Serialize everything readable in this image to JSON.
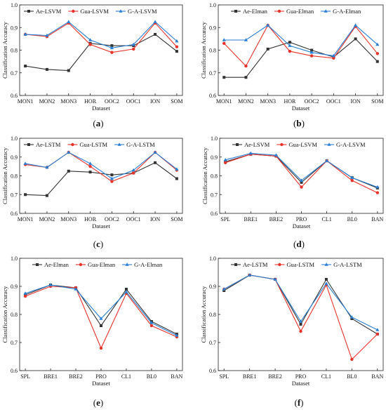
{
  "chart_data": [
    {
      "type": "line",
      "caption": "(a)",
      "xlabel": "Dataset",
      "ylabel": "Classification Accuracy",
      "ylim": [
        0.6,
        1.0
      ],
      "yticks": [
        "0.6",
        "0.7",
        "0.8",
        "0.9",
        "1.0"
      ],
      "legend_position": "top-left",
      "categories": [
        "MON1",
        "MON2",
        "MON3",
        "HOR",
        "OOC2",
        "OOC1",
        "ION",
        "SOM"
      ],
      "series": [
        {
          "name": "Ae-LSVM",
          "color": "#333333",
          "marker": "square",
          "values": [
            0.73,
            0.715,
            0.71,
            0.83,
            0.82,
            0.82,
            0.87,
            0.795
          ]
        },
        {
          "name": "Gua-LSVM",
          "color": "#e8332a",
          "marker": "circle",
          "values": [
            0.87,
            0.86,
            0.92,
            0.825,
            0.79,
            0.805,
            0.92,
            0.815
          ]
        },
        {
          "name": "G-A-LSVM",
          "color": "#2a7fd4",
          "marker": "triangle",
          "values": [
            0.87,
            0.865,
            0.925,
            0.845,
            0.81,
            0.825,
            0.925,
            0.84
          ]
        }
      ]
    },
    {
      "type": "line",
      "caption": "(b)",
      "xlabel": "Dataset",
      "ylabel": "Classification Accuracy",
      "ylim": [
        0.6,
        1.0
      ],
      "yticks": [
        "0.6",
        "0.7",
        "0.8",
        "0.9",
        "1.0"
      ],
      "legend_position": "top",
      "categories": [
        "MON1",
        "MON2",
        "MON3",
        "HOR",
        "OOC2",
        "OOC1",
        "ION",
        "SOM"
      ],
      "series": [
        {
          "name": "Ae-Elman",
          "color": "#333333",
          "marker": "square",
          "values": [
            0.68,
            0.68,
            0.805,
            0.835,
            0.8,
            0.77,
            0.85,
            0.75
          ]
        },
        {
          "name": "Gua-Elman",
          "color": "#e8332a",
          "marker": "circle",
          "values": [
            0.83,
            0.73,
            0.91,
            0.795,
            0.775,
            0.765,
            0.905,
            0.785
          ]
        },
        {
          "name": "G-A-Elman",
          "color": "#2a7fd4",
          "marker": "triangle",
          "values": [
            0.845,
            0.845,
            0.91,
            0.82,
            0.79,
            0.775,
            0.91,
            0.825
          ]
        }
      ]
    },
    {
      "type": "line",
      "caption": "(c)",
      "xlabel": "Dataset",
      "ylabel": "Classification Accuracy",
      "ylim": [
        0.6,
        1.0
      ],
      "yticks": [
        "0.6",
        "0.7",
        "0.8",
        "0.9",
        "1.0"
      ],
      "legend_position": "top-left",
      "categories": [
        "MON1",
        "MON2",
        "MON3",
        "HOR",
        "OOC2",
        "OOC1",
        "ION",
        "SOM"
      ],
      "series": [
        {
          "name": "Ae-LSTM",
          "color": "#333333",
          "marker": "square",
          "values": [
            0.7,
            0.695,
            0.825,
            0.82,
            0.805,
            0.815,
            0.87,
            0.785
          ]
        },
        {
          "name": "Gua-LSTM",
          "color": "#e8332a",
          "marker": "circle",
          "values": [
            0.86,
            0.845,
            0.925,
            0.85,
            0.77,
            0.815,
            0.925,
            0.83
          ]
        },
        {
          "name": "G-A-LSTM",
          "color": "#2a7fd4",
          "marker": "triangle",
          "values": [
            0.865,
            0.845,
            0.925,
            0.865,
            0.785,
            0.83,
            0.925,
            0.835
          ]
        }
      ]
    },
    {
      "type": "line",
      "caption": "(d)",
      "xlabel": "Dataset",
      "ylabel": "Classification Accuracy",
      "ylim": [
        0.6,
        1.0
      ],
      "yticks": [
        "0.6",
        "0.7",
        "0.8",
        "0.9",
        "1.0"
      ],
      "legend_position": "top",
      "categories": [
        "SPL",
        "BRE1",
        "BRE2",
        "PRO",
        "CL1",
        "BL0",
        "BAN"
      ],
      "series": [
        {
          "name": "Ae-LSVM",
          "color": "#333333",
          "marker": "square",
          "values": [
            0.875,
            0.915,
            0.905,
            0.765,
            0.88,
            0.79,
            0.735
          ]
        },
        {
          "name": "Gua-LSVM",
          "color": "#e8332a",
          "marker": "circle",
          "values": [
            0.87,
            0.915,
            0.905,
            0.74,
            0.88,
            0.775,
            0.71
          ]
        },
        {
          "name": "G-A-LSVM",
          "color": "#2a7fd4",
          "marker": "triangle",
          "values": [
            0.885,
            0.92,
            0.91,
            0.775,
            0.88,
            0.79,
            0.74
          ]
        }
      ]
    },
    {
      "type": "line",
      "caption": "(e)",
      "xlabel": "Dataset",
      "ylabel": "Classification Accuracy",
      "ylim": [
        0.6,
        1.0
      ],
      "yticks": [
        "0.6",
        "0.7",
        "0.8",
        "0.9",
        "1.0"
      ],
      "legend_position": "top",
      "categories": [
        "SPL",
        "BRE1",
        "BRE2",
        "PRO",
        "CL1",
        "BL0",
        "BAN"
      ],
      "series": [
        {
          "name": "Ae-Elman",
          "color": "#333333",
          "marker": "square",
          "values": [
            0.87,
            0.905,
            0.895,
            0.76,
            0.89,
            0.775,
            0.73
          ]
        },
        {
          "name": "Gua-Elman",
          "color": "#e8332a",
          "marker": "circle",
          "values": [
            0.865,
            0.9,
            0.895,
            0.68,
            0.875,
            0.76,
            0.72
          ]
        },
        {
          "name": "G-A-Elman",
          "color": "#2a7fd4",
          "marker": "triangle",
          "values": [
            0.875,
            0.905,
            0.89,
            0.785,
            0.88,
            0.77,
            0.725
          ]
        }
      ]
    },
    {
      "type": "line",
      "caption": "(f)",
      "xlabel": "Dataset",
      "ylabel": "Classification Accuracy",
      "ylim": [
        0.6,
        1.0
      ],
      "yticks": [
        "0.6",
        "0.7",
        "0.8",
        "0.9",
        "1.0"
      ],
      "legend_position": "top",
      "categories": [
        "SPL",
        "BRE1",
        "BRE2",
        "PRO",
        "CL1",
        "BL0",
        "BAN"
      ],
      "series": [
        {
          "name": "Ae-LSTM",
          "color": "#333333",
          "marker": "square",
          "values": [
            0.885,
            0.94,
            0.925,
            0.765,
            0.925,
            0.785,
            0.73
          ]
        },
        {
          "name": "Gua-LSTM",
          "color": "#e8332a",
          "marker": "circle",
          "values": [
            0.89,
            0.94,
            0.925,
            0.74,
            0.905,
            0.64,
            0.73
          ]
        },
        {
          "name": "G-A-LSTM",
          "color": "#2a7fd4",
          "marker": "triangle",
          "values": [
            0.89,
            0.94,
            0.925,
            0.775,
            0.91,
            0.79,
            0.745
          ]
        }
      ]
    }
  ]
}
